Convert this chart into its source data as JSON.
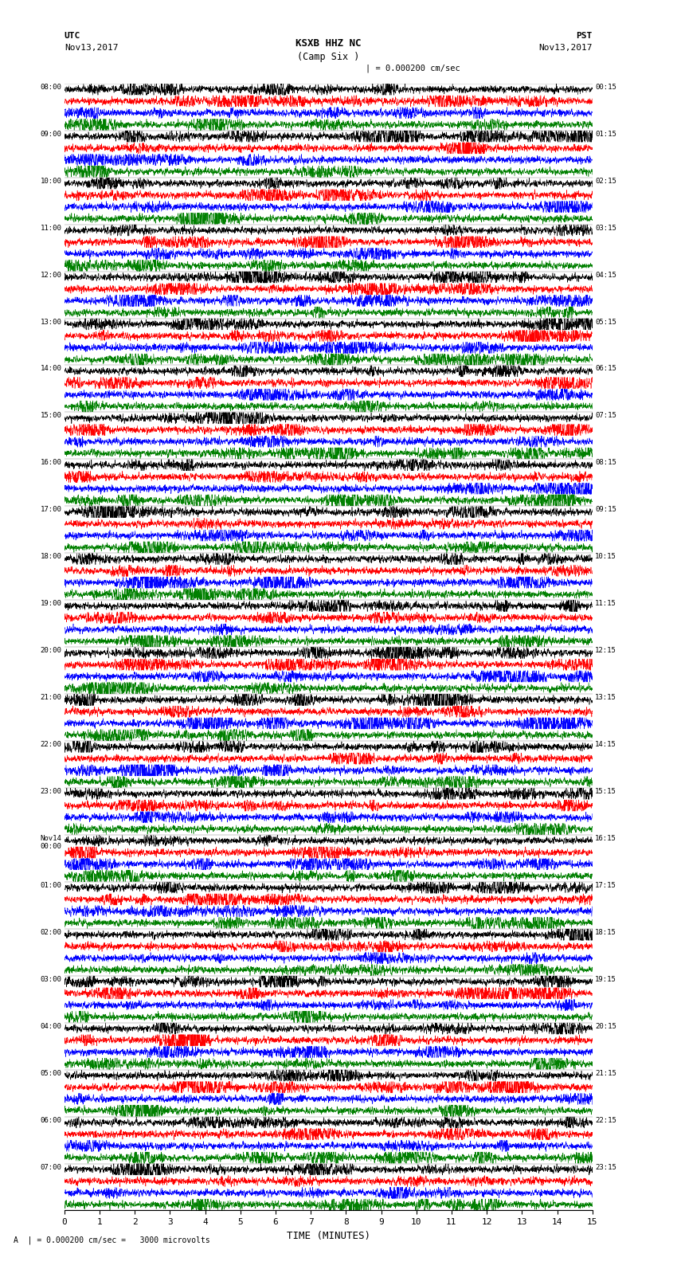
{
  "title_main": "KSXB HHZ NC",
  "title_sub": "(Camp Six )",
  "label_utc": "UTC",
  "label_pst": "PST",
  "date_left": "Nov13,2017",
  "date_right": "Nov13,2017",
  "scale_label": "| = 0.000200 cm/sec",
  "scale_note": "A  | = 0.000200 cm/sec =   3000 microvolts",
  "xlabel": "TIME (MINUTES)",
  "xticks": [
    0,
    1,
    2,
    3,
    4,
    5,
    6,
    7,
    8,
    9,
    10,
    11,
    12,
    13,
    14,
    15
  ],
  "time_labels_left": [
    "08:00",
    "09:00",
    "10:00",
    "11:00",
    "12:00",
    "13:00",
    "14:00",
    "15:00",
    "16:00",
    "17:00",
    "18:00",
    "19:00",
    "20:00",
    "21:00",
    "22:00",
    "23:00",
    "Nov14\n00:00",
    "01:00",
    "02:00",
    "03:00",
    "04:00",
    "05:00",
    "06:00",
    "07:00"
  ],
  "time_labels_right": [
    "00:15",
    "01:15",
    "02:15",
    "03:15",
    "04:15",
    "05:15",
    "06:15",
    "07:15",
    "08:15",
    "09:15",
    "10:15",
    "11:15",
    "12:15",
    "13:15",
    "14:15",
    "15:15",
    "16:15",
    "17:15",
    "18:15",
    "19:15",
    "20:15",
    "21:15",
    "22:15",
    "23:15"
  ],
  "n_rows": 24,
  "traces_per_row": 4,
  "colors": [
    "black",
    "red",
    "blue",
    "green"
  ],
  "background_color": "white",
  "fig_width": 8.5,
  "fig_height": 16.13,
  "dpi": 100,
  "seed": 42
}
